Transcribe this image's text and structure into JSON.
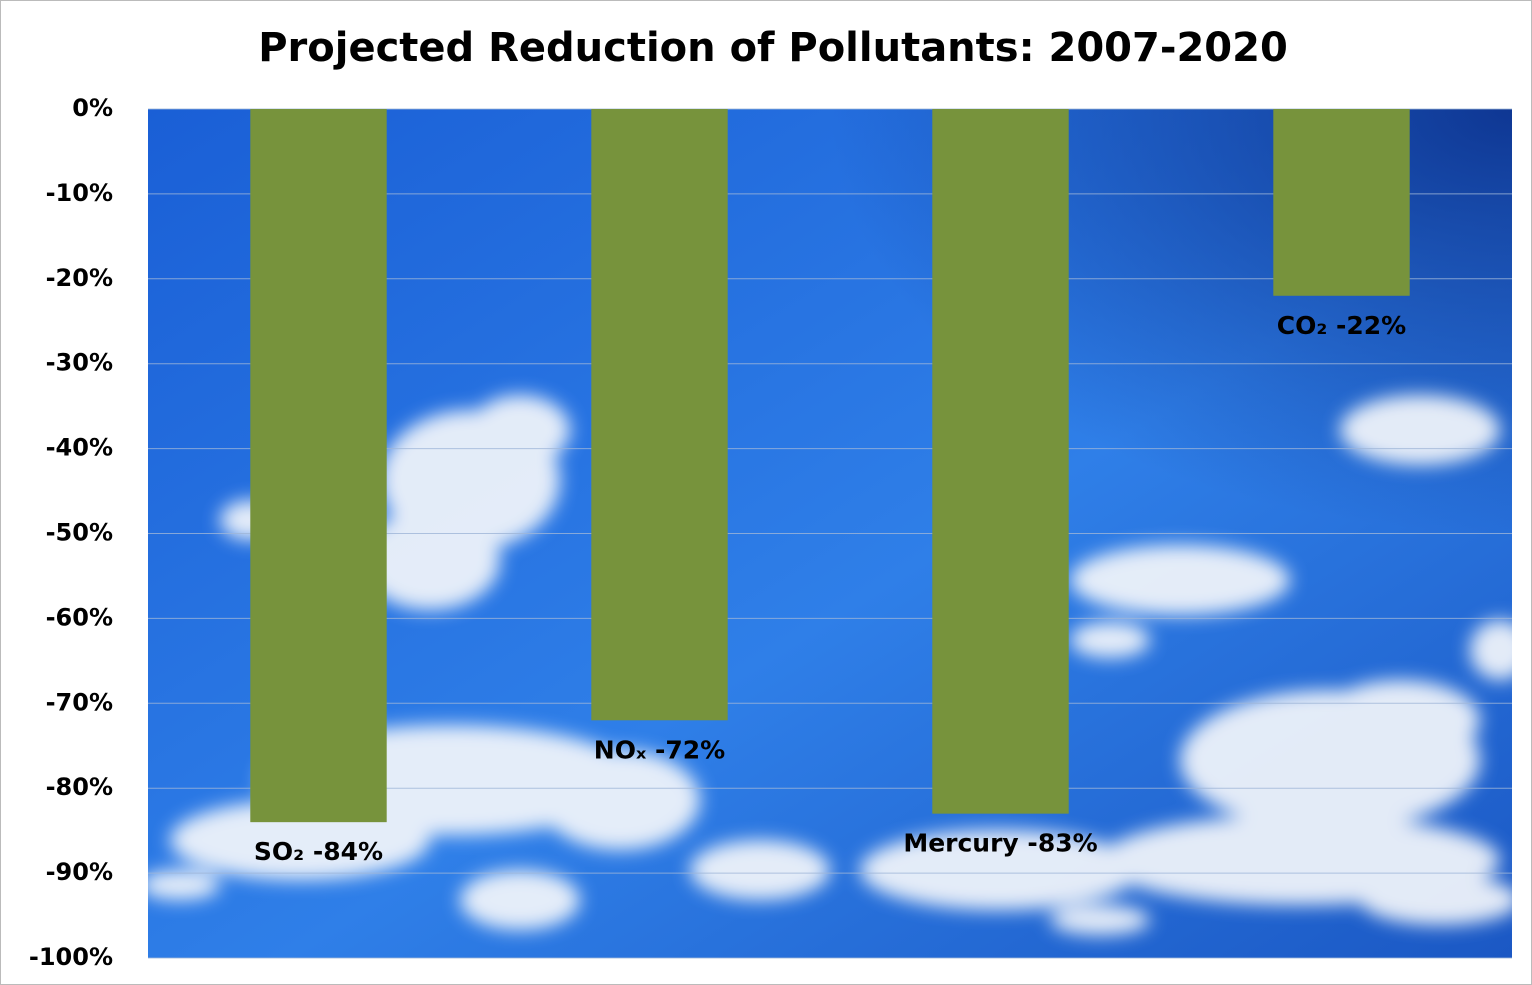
{
  "chart_data": {
    "type": "bar",
    "title": "Projected Reduction of Pollutants: 2007-2020",
    "values": [
      -84,
      -72,
      -83,
      -22
    ],
    "value_labels": [
      "SO₂ -84%",
      "NOₓ -72%",
      "Mercury -83%",
      "CO₂ -22%"
    ],
    "color": "#77933c",
    "ylim": [
      -100,
      0
    ],
    "yticks": [
      {
        "value": 0,
        "label": "0%"
      },
      {
        "value": -10,
        "label": "-10%"
      },
      {
        "value": -20,
        "label": "-20%"
      },
      {
        "value": -30,
        "label": "-30%"
      },
      {
        "value": -40,
        "label": "-40%"
      },
      {
        "value": -50,
        "label": "-50%"
      },
      {
        "value": -60,
        "label": "-60%"
      },
      {
        "value": -70,
        "label": "-70%"
      },
      {
        "value": -80,
        "label": "-80%"
      },
      {
        "value": -90,
        "label": "-90%"
      },
      {
        "value": -100,
        "label": "-100%"
      }
    ],
    "grid": true
  }
}
